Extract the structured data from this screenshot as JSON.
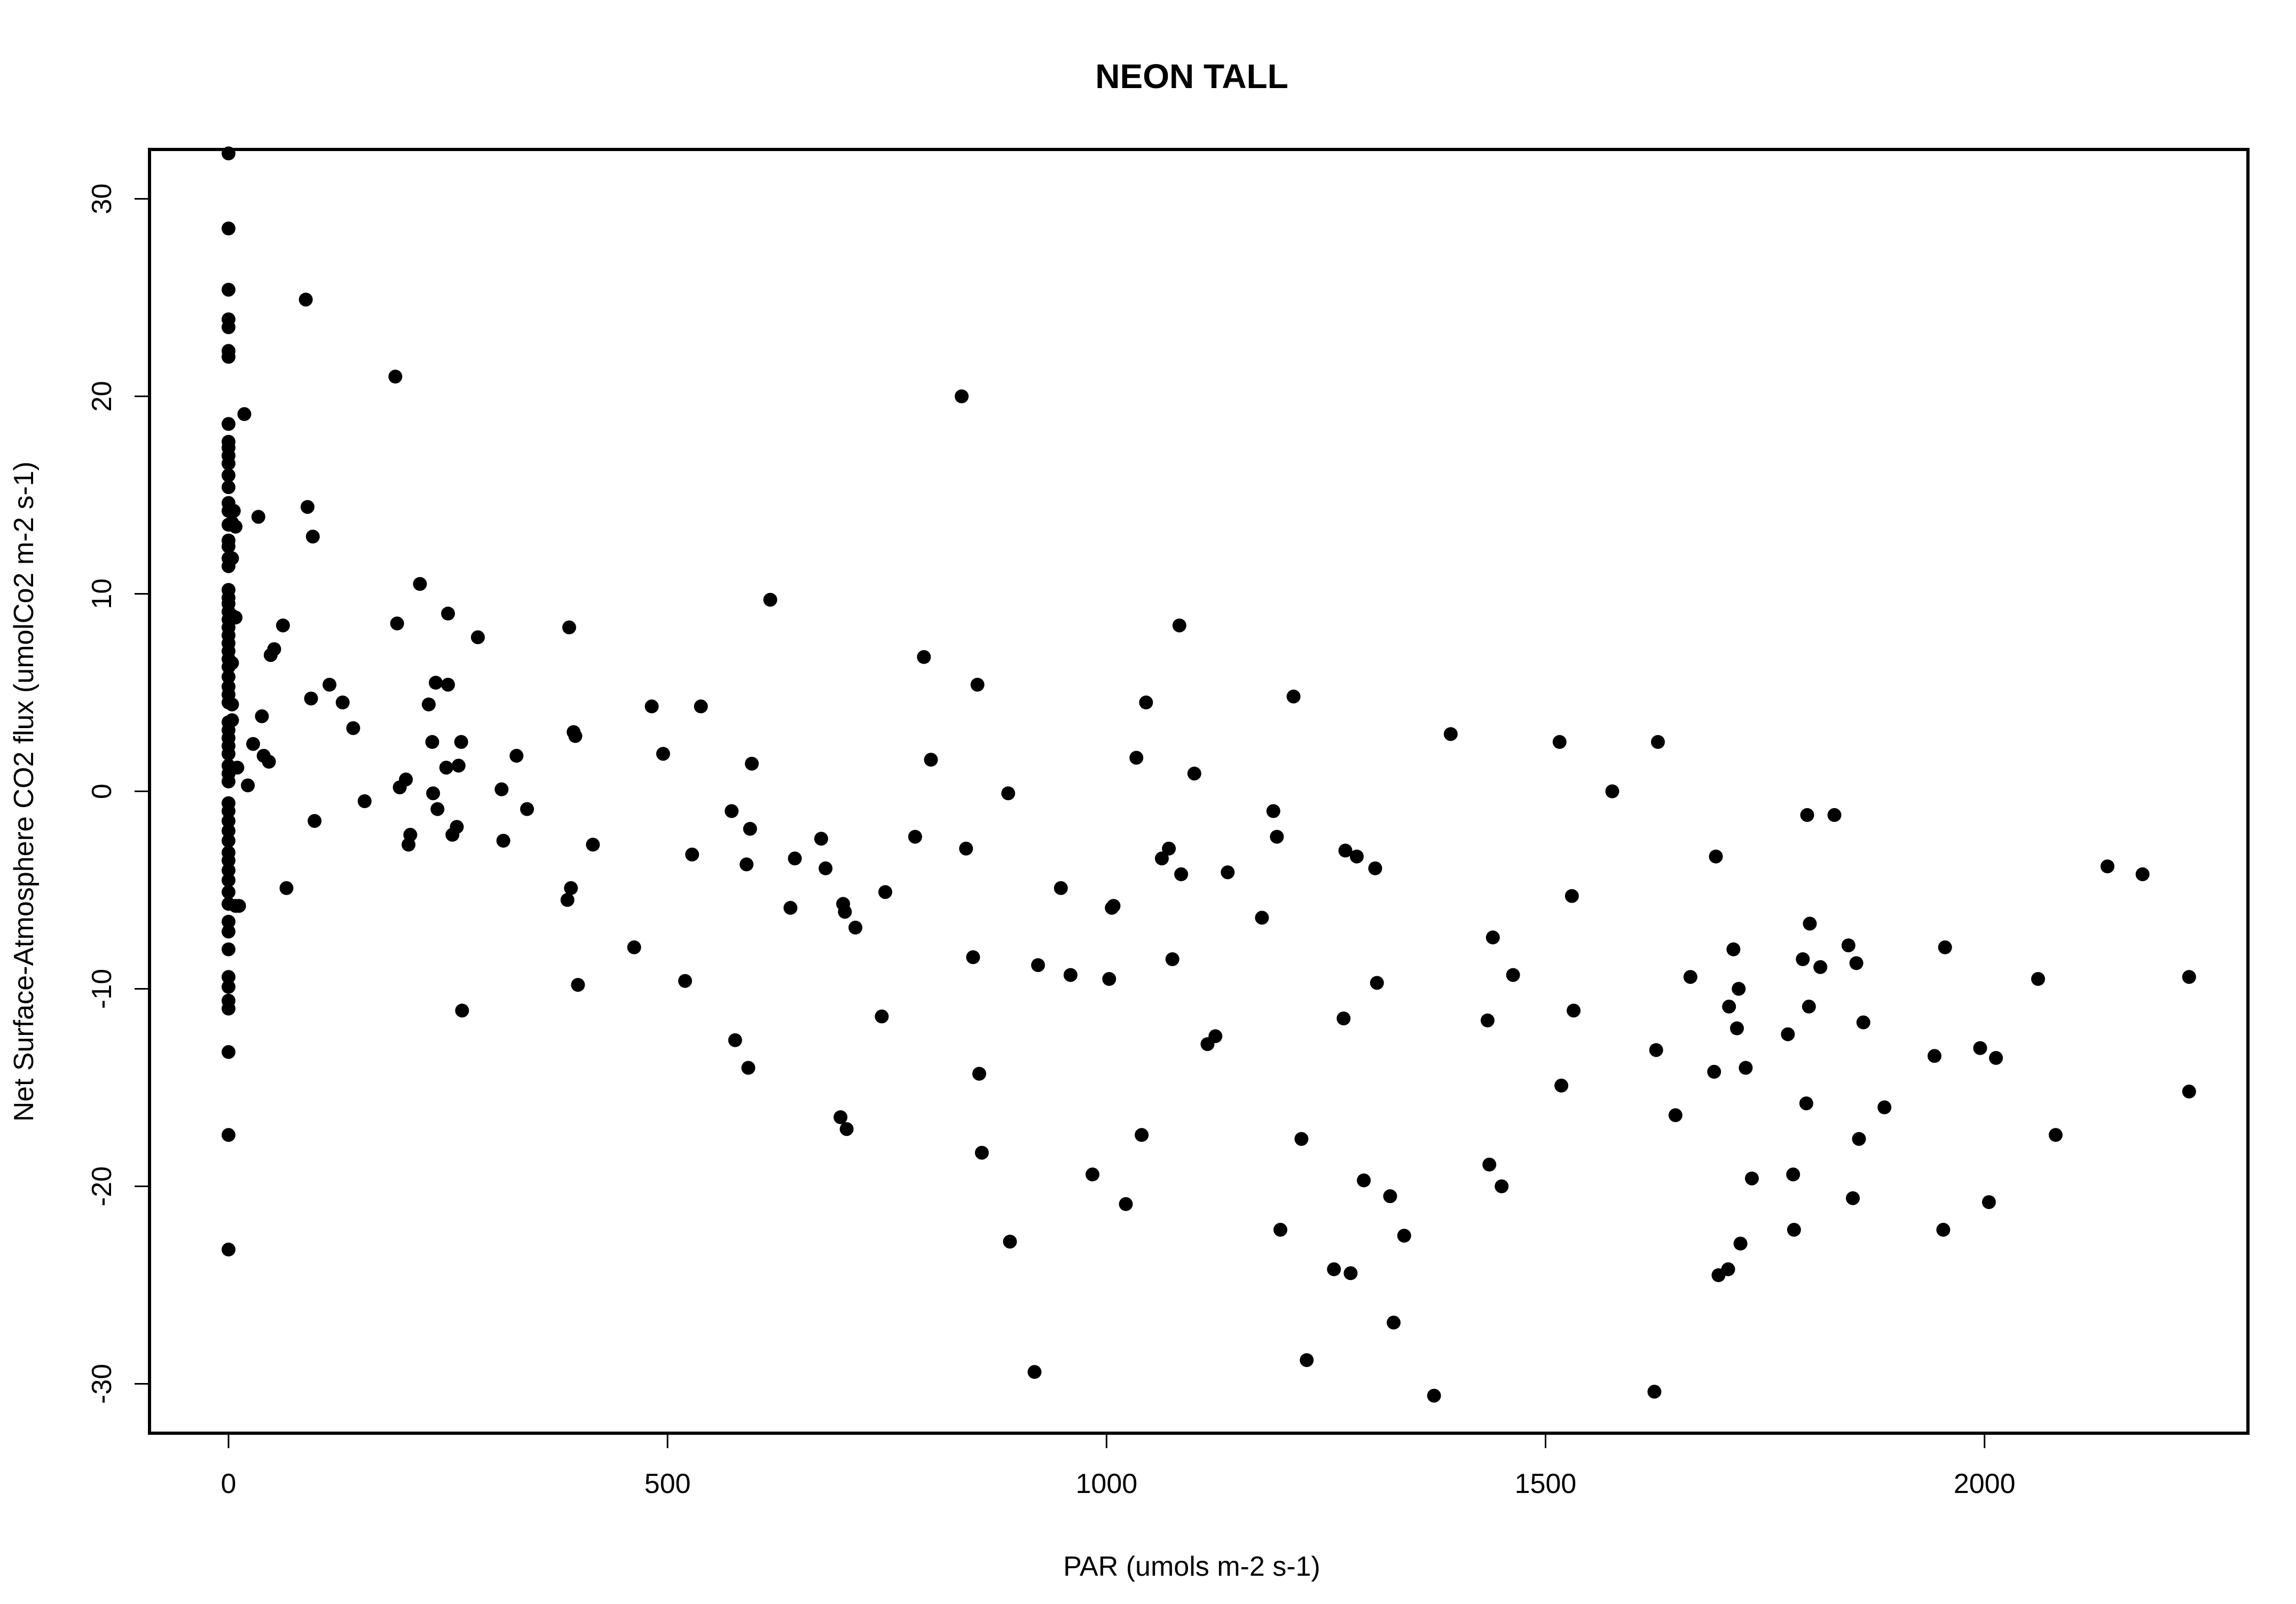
{
  "chart_data": {
    "type": "scatter",
    "title": "NEON TALL",
    "xlabel": "PAR (umols m-2 s-1)",
    "ylabel": "Net Surface-Atmosphere CO2 flux (umolCo2 m-2 s-1)",
    "xlim": [
      -90,
      2300
    ],
    "ylim": [
      -32.5,
      32.5
    ],
    "x_ticks": [
      0,
      500,
      1000,
      1500,
      2000
    ],
    "y_ticks": [
      -30,
      -20,
      -10,
      0,
      10,
      20,
      30
    ],
    "x_tick_labels": [
      "0",
      "500",
      "1000",
      "1500",
      "2000"
    ],
    "y_tick_labels": [
      "-30",
      "-20",
      "-10",
      "0",
      "10",
      "20",
      "30"
    ],
    "grid": false,
    "legend": "none",
    "marker_color": "#000000",
    "points": [
      [
        0,
        32.3
      ],
      [
        0,
        28.5
      ],
      [
        0,
        25.4
      ],
      [
        0,
        23.9
      ],
      [
        0,
        23.5
      ],
      [
        0,
        22.3
      ],
      [
        0,
        22.0
      ],
      [
        0,
        18.6
      ],
      [
        0,
        17.7
      ],
      [
        0,
        17.4
      ],
      [
        0,
        17.0
      ],
      [
        0,
        16.6
      ],
      [
        0,
        16.0
      ],
      [
        0,
        15.4
      ],
      [
        0,
        14.6
      ],
      [
        0,
        14.2
      ],
      [
        0,
        13.5
      ],
      [
        0,
        12.7
      ],
      [
        0,
        12.4
      ],
      [
        0,
        11.8
      ],
      [
        0,
        11.4
      ],
      [
        0,
        10.2
      ],
      [
        0,
        9.8
      ],
      [
        0,
        9.5
      ],
      [
        0,
        9.1
      ],
      [
        0,
        8.7
      ],
      [
        0,
        8.3
      ],
      [
        0,
        7.9
      ],
      [
        0,
        7.5
      ],
      [
        0,
        7.1
      ],
      [
        0,
        6.7
      ],
      [
        0,
        6.3
      ],
      [
        0,
        5.8
      ],
      [
        0,
        5.3
      ],
      [
        0,
        4.9
      ],
      [
        0,
        4.5
      ],
      [
        0,
        3.5
      ],
      [
        0,
        3.1
      ],
      [
        0,
        2.7
      ],
      [
        0,
        2.3
      ],
      [
        0,
        1.9
      ],
      [
        0,
        1.3
      ],
      [
        0,
        0.9
      ],
      [
        0,
        0.5
      ],
      [
        0,
        -0.6
      ],
      [
        0,
        -1.0
      ],
      [
        0,
        -1.5
      ],
      [
        0,
        -2.0
      ],
      [
        0,
        -2.5
      ],
      [
        0,
        -3.1
      ],
      [
        0,
        -3.5
      ],
      [
        0,
        -4.0
      ],
      [
        0,
        -4.5
      ],
      [
        0,
        -5.1
      ],
      [
        0,
        -5.7
      ],
      [
        0,
        -6.6
      ],
      [
        0,
        -7.1
      ],
      [
        0,
        -8.0
      ],
      [
        0,
        -9.4
      ],
      [
        0,
        -9.9
      ],
      [
        0,
        -10.6
      ],
      [
        0,
        -11.0
      ],
      [
        0,
        -13.2
      ],
      [
        0,
        -17.4
      ],
      [
        0,
        -23.2
      ],
      [
        4,
        13.6
      ],
      [
        4,
        11.8
      ],
      [
        4,
        8.9
      ],
      [
        4,
        6.5
      ],
      [
        4,
        4.4
      ],
      [
        4,
        3.6
      ],
      [
        6,
        14.2
      ],
      [
        8,
        13.4
      ],
      [
        8,
        8.8
      ],
      [
        8,
        -5.8
      ],
      [
        10,
        1.2
      ],
      [
        12,
        -5.8
      ],
      [
        18,
        19.1
      ],
      [
        22,
        0.3
      ],
      [
        28,
        2.4
      ],
      [
        34,
        13.9
      ],
      [
        38,
        3.8
      ],
      [
        40,
        1.8
      ],
      [
        46,
        1.5
      ],
      [
        48,
        6.9
      ],
      [
        52,
        7.2
      ],
      [
        62,
        8.4
      ],
      [
        66,
        -4.9
      ],
      [
        88,
        24.9
      ],
      [
        90,
        14.4
      ],
      [
        94,
        4.7
      ],
      [
        96,
        12.9
      ],
      [
        98,
        -1.5
      ],
      [
        115,
        5.4
      ],
      [
        130,
        4.5
      ],
      [
        142,
        3.2
      ],
      [
        155,
        -0.5
      ],
      [
        190,
        21.0
      ],
      [
        192,
        8.5
      ],
      [
        195,
        0.2
      ],
      [
        202,
        0.6
      ],
      [
        205,
        -2.7
      ],
      [
        207,
        -2.2
      ],
      [
        218,
        10.5
      ],
      [
        228,
        4.4
      ],
      [
        232,
        2.5
      ],
      [
        233,
        -0.1
      ],
      [
        236,
        5.5
      ],
      [
        238,
        -0.9
      ],
      [
        248,
        1.2
      ],
      [
        250,
        9.0
      ],
      [
        250,
        5.4
      ],
      [
        255,
        -2.2
      ],
      [
        260,
        -1.8
      ],
      [
        262,
        1.3
      ],
      [
        265,
        2.5
      ],
      [
        266,
        -11.1
      ],
      [
        284,
        7.8
      ],
      [
        311,
        0.1
      ],
      [
        313,
        -2.5
      ],
      [
        328,
        1.8
      ],
      [
        340,
        -0.9
      ],
      [
        386,
        -5.5
      ],
      [
        388,
        8.3
      ],
      [
        390,
        -4.9
      ],
      [
        393,
        3.0
      ],
      [
        395,
        2.8
      ],
      [
        398,
        -9.8
      ],
      [
        415,
        -2.7
      ],
      [
        462,
        -7.9
      ],
      [
        482,
        4.3
      ],
      [
        495,
        1.9
      ],
      [
        520,
        -9.6
      ],
      [
        528,
        -3.2
      ],
      [
        538,
        4.3
      ],
      [
        573,
        -1.0
      ],
      [
        577,
        -12.6
      ],
      [
        590,
        -3.7
      ],
      [
        592,
        -14.0
      ],
      [
        594,
        -1.9
      ],
      [
        596,
        1.4
      ],
      [
        617,
        9.7
      ],
      [
        640,
        -5.9
      ],
      [
        645,
        -3.4
      ],
      [
        675,
        -2.4
      ],
      [
        680,
        -3.9
      ],
      [
        697,
        -16.5
      ],
      [
        700,
        -5.7
      ],
      [
        702,
        -6.1
      ],
      [
        704,
        -17.1
      ],
      [
        714,
        -6.9
      ],
      [
        744,
        -11.4
      ],
      [
        748,
        -5.1
      ],
      [
        782,
        -2.3
      ],
      [
        792,
        6.8
      ],
      [
        800,
        1.6
      ],
      [
        835,
        20.0
      ],
      [
        840,
        -2.9
      ],
      [
        848,
        -8.4
      ],
      [
        853,
        5.4
      ],
      [
        855,
        -14.3
      ],
      [
        858,
        -18.3
      ],
      [
        888,
        -0.1
      ],
      [
        890,
        -22.8
      ],
      [
        918,
        -29.4
      ],
      [
        922,
        -8.8
      ],
      [
        948,
        -4.9
      ],
      [
        959,
        -9.3
      ],
      [
        984,
        -19.4
      ],
      [
        1003,
        -9.5
      ],
      [
        1006,
        -5.9
      ],
      [
        1008,
        -5.8
      ],
      [
        1022,
        -20.9
      ],
      [
        1034,
        1.7
      ],
      [
        1040,
        -17.4
      ],
      [
        1045,
        4.5
      ],
      [
        1063,
        -3.4
      ],
      [
        1071,
        -2.9
      ],
      [
        1075,
        -8.5
      ],
      [
        1083,
        8.4
      ],
      [
        1085,
        -4.2
      ],
      [
        1100,
        0.9
      ],
      [
        1115,
        -12.8
      ],
      [
        1124,
        -12.4
      ],
      [
        1138,
        -4.1
      ],
      [
        1177,
        -6.4
      ],
      [
        1190,
        -1.0
      ],
      [
        1194,
        -2.3
      ],
      [
        1198,
        -22.2
      ],
      [
        1213,
        4.8
      ],
      [
        1222,
        -17.6
      ],
      [
        1228,
        -28.8
      ],
      [
        1259,
        -24.2
      ],
      [
        1270,
        -11.5
      ],
      [
        1272,
        -3.0
      ],
      [
        1278,
        -24.4
      ],
      [
        1285,
        -3.3
      ],
      [
        1293,
        -19.7
      ],
      [
        1306,
        -3.9
      ],
      [
        1308,
        -9.7
      ],
      [
        1323,
        -20.5
      ],
      [
        1327,
        -26.9
      ],
      [
        1339,
        -22.5
      ],
      [
        1373,
        -30.6
      ],
      [
        1392,
        2.9
      ],
      [
        1434,
        -11.6
      ],
      [
        1436,
        -18.9
      ],
      [
        1440,
        -7.4
      ],
      [
        1450,
        -20.0
      ],
      [
        1463,
        -9.3
      ],
      [
        1516,
        2.5
      ],
      [
        1518,
        -14.9
      ],
      [
        1530,
        -5.3
      ],
      [
        1532,
        -11.1
      ],
      [
        1576,
        0.0
      ],
      [
        1624,
        -30.4
      ],
      [
        1626,
        -13.1
      ],
      [
        1628,
        2.5
      ],
      [
        1648,
        -16.4
      ],
      [
        1665,
        -9.4
      ],
      [
        1692,
        -14.2
      ],
      [
        1694,
        -3.3
      ],
      [
        1697,
        -24.5
      ],
      [
        1708,
        -24.2
      ],
      [
        1709,
        -10.9
      ],
      [
        1714,
        -8.0
      ],
      [
        1718,
        -12.0
      ],
      [
        1720,
        -10.0
      ],
      [
        1722,
        -22.9
      ],
      [
        1728,
        -14.0
      ],
      [
        1735,
        -19.6
      ],
      [
        1776,
        -12.3
      ],
      [
        1782,
        -19.4
      ],
      [
        1783,
        -22.2
      ],
      [
        1793,
        -8.5
      ],
      [
        1797,
        -15.8
      ],
      [
        1798,
        -1.2
      ],
      [
        1800,
        -10.9
      ],
      [
        1801,
        -6.7
      ],
      [
        1813,
        -8.9
      ],
      [
        1829,
        -1.2
      ],
      [
        1845,
        -7.8
      ],
      [
        1850,
        -20.6
      ],
      [
        1854,
        -8.7
      ],
      [
        1857,
        -17.6
      ],
      [
        1862,
        -11.7
      ],
      [
        1886,
        -16.0
      ],
      [
        1943,
        -13.4
      ],
      [
        1953,
        -22.2
      ],
      [
        1955,
        -7.9
      ],
      [
        1995,
        -13.0
      ],
      [
        2005,
        -20.8
      ],
      [
        2013,
        -13.5
      ],
      [
        2061,
        -9.5
      ],
      [
        2081,
        -17.4
      ],
      [
        2140,
        -3.8
      ],
      [
        2180,
        -4.2
      ],
      [
        2233,
        -9.4
      ],
      [
        2233,
        -15.2
      ]
    ]
  }
}
